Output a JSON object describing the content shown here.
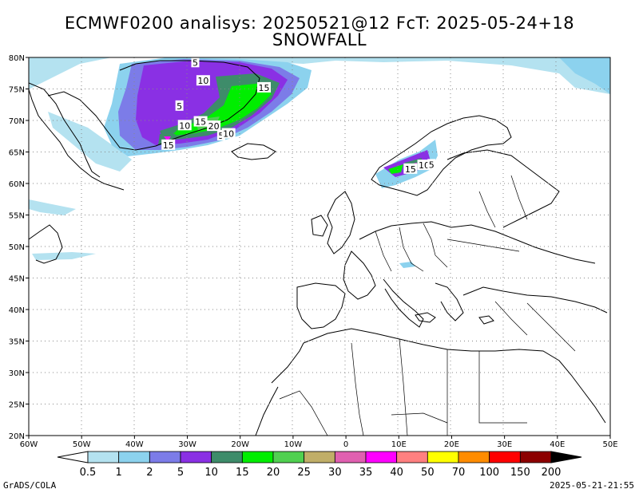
{
  "title_line1": "ECMWF0200 analisys: 20250521@12 FcT: 2025-05-24+18",
  "title_line2": "SNOWFALL",
  "lat_labels": [
    "80N",
    "75N",
    "70N",
    "65N",
    "60N",
    "55N",
    "50N",
    "45N",
    "40N",
    "35N",
    "30N",
    "25N",
    "20N"
  ],
  "lon_labels": [
    "60W",
    "50W",
    "40W",
    "30W",
    "20W",
    "10W",
    "0",
    "10E",
    "20E",
    "30E",
    "40E",
    "50E"
  ],
  "contour_labels": [
    {
      "text": "5",
      "lon": -28.5,
      "lat": 79.2
    },
    {
      "text": "10",
      "lon": -27.0,
      "lat": 76.3
    },
    {
      "text": "15",
      "lon": -15.5,
      "lat": 75.2
    },
    {
      "text": "5",
      "lon": -31.5,
      "lat": 72.3
    },
    {
      "text": "10",
      "lon": -30.5,
      "lat": 69.2
    },
    {
      "text": "15",
      "lon": -27.5,
      "lat": 69.8
    },
    {
      "text": "20",
      "lon": -25.0,
      "lat": 69.1
    },
    {
      "text": "5",
      "lon": -23.6,
      "lat": 67.6
    },
    {
      "text": "10",
      "lon": -22.2,
      "lat": 67.9
    },
    {
      "text": "15",
      "lon": -33.6,
      "lat": 66.1
    },
    {
      "text": "15",
      "lon": 12.2,
      "lat": 62.3
    },
    {
      "text": "10",
      "lon": 14.8,
      "lat": 62.9
    },
    {
      "text": "5",
      "lon": 16.2,
      "lat": 63.0
    }
  ],
  "colorbar": {
    "levels": [
      "0.5",
      "1",
      "2",
      "5",
      "10",
      "15",
      "20",
      "25",
      "30",
      "35",
      "40",
      "50",
      "70",
      "100",
      "150",
      "200"
    ],
    "colors": [
      "#b4e2f0",
      "#8cd2ee",
      "#7c7ce8",
      "#8a30e4",
      "#3e8c6a",
      "#00ee00",
      "#50d050",
      "#c0ae68",
      "#e060b0",
      "#ff00ff",
      "#ff8080",
      "#ffff00",
      "#ff8c00",
      "#ff0000",
      "#8c0000"
    ]
  },
  "footer_left": "GrADS/COLA",
  "footer_right": "2025-05-21-21:55"
}
